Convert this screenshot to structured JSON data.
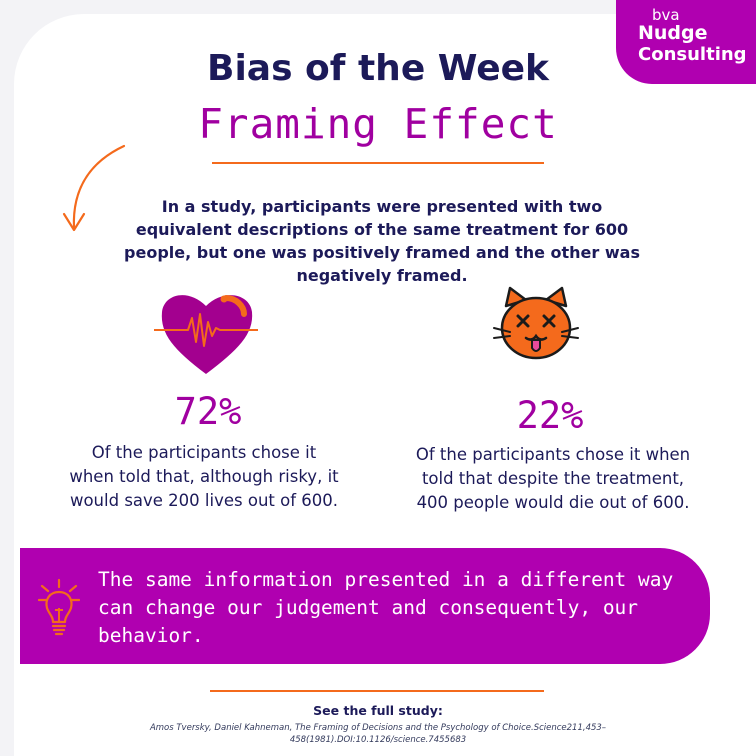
{
  "logo": {
    "top": "bva",
    "line1": "Nudge",
    "line2": "Consulting"
  },
  "header": {
    "title": "Bias of the Week",
    "subtitle": "Framing Effect"
  },
  "intro": "In a study, participants were presented with two equivalent descriptions of the same treatment for 600 people, but one was positively framed and the other was negatively framed.",
  "stats": [
    {
      "percent": "72%",
      "text": "Of the participants chose it when told that, although risky, it would save 200 lives out of 600.",
      "icon": "heart-heartbeat-icon"
    },
    {
      "percent": "22%",
      "text": "Of the participants chose it when told that despite the treatment, 400 people would die out of 600.",
      "icon": "dead-cat-face-icon"
    }
  ],
  "banner": {
    "text": "The same information presented in a different way can change our judgement and consequently, our behavior.",
    "icon": "lightbulb-icon"
  },
  "footer": {
    "see_label": "See the full study:",
    "citation": "Amos Tversky, Daniel Kahneman, The Framing of Decisions and the Psychology of Choice.Science211,453–458(1981).DOI:10.1126/science.7455683"
  },
  "colors": {
    "purple": "#b000b0",
    "navy": "#1c1a59",
    "orange": "#f46a1c",
    "background": "#ffffff"
  }
}
